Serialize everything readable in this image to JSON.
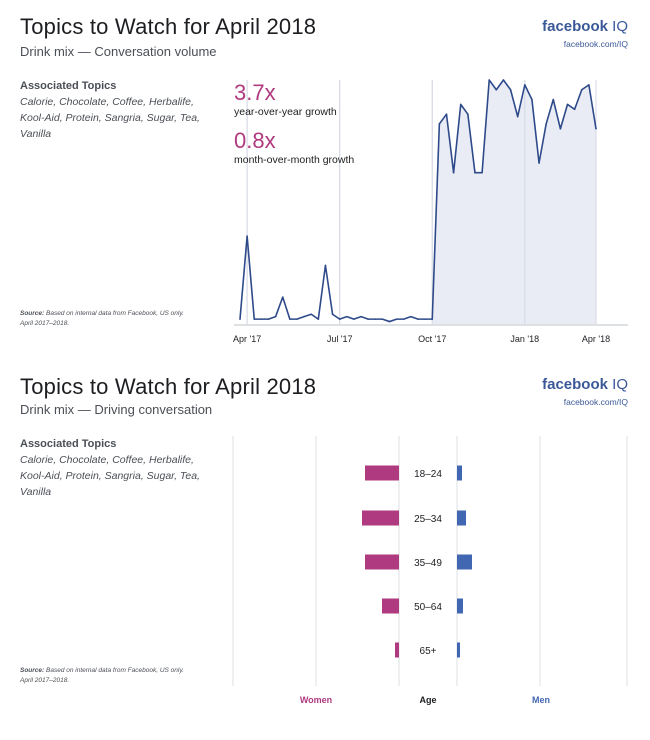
{
  "panel1": {
    "title": "Topics to Watch for April 2018",
    "subtitle": "Drink mix — Conversation volume",
    "brand": "facebook",
    "brand_suffix": "IQ",
    "brand_url": "facebook.com/IQ",
    "assoc_title": "Associated Topics",
    "assoc_list": "Calorie, Chocolate, Coffee, Herbalife, Kool-Aid, Protein, Sangria, Sugar, Tea, Vanilla",
    "source_label": "Source:",
    "source_text": "Based on internal data from Facebook, US only. April 2017–2018.",
    "metric1_value": "3.7x",
    "metric1_label": "year-over-year growth",
    "metric2_value": "0.8x",
    "metric2_label": "month-over-month growth"
  },
  "panel2": {
    "title": "Topics to Watch for April 2018",
    "subtitle": "Drink mix — Driving conversation",
    "brand": "facebook",
    "brand_suffix": "IQ",
    "brand_url": "facebook.com/IQ",
    "assoc_title": "Associated Topics",
    "assoc_list": "Calorie, Chocolate, Coffee, Herbalife, Kool-Aid, Protein, Sangria, Sugar, Tea, Vanilla",
    "source_label": "Source:",
    "source_text": "Based on internal data from Facebook, US only. April 2017–2018."
  },
  "colors": {
    "women": "#b03a7f",
    "men": "#4267b2",
    "line": "#2e4a8a",
    "area": "#e9ecf5",
    "grid": "#dddfe2"
  },
  "chart_data": [
    {
      "type": "area",
      "x_ticks": [
        "Apr '17",
        "Jul '17",
        "Oct '17",
        "Jan '18",
        "Apr '18"
      ],
      "ylim": [
        0,
        100
      ],
      "series": [
        {
          "values": [
            2,
            36,
            2,
            2,
            2,
            3,
            11,
            2,
            2,
            3,
            4,
            2,
            24,
            4,
            2,
            3,
            2,
            3,
            2,
            2,
            2,
            1,
            2,
            2,
            3,
            2,
            2,
            2,
            82,
            86,
            62,
            90,
            86,
            62,
            62,
            100,
            96,
            100,
            96,
            85,
            98,
            92,
            66,
            82,
            92,
            80,
            90,
            88,
            96,
            98,
            80
          ]
        }
      ],
      "shaded_from_index": 27,
      "xlabel": "",
      "ylabel": ""
    },
    {
      "type": "bar",
      "orientation": "horizontal-diverging",
      "categories": [
        "18–24",
        "25–34",
        "35–49",
        "50–64",
        "65+"
      ],
      "series": [
        {
          "name": "Women",
          "values": [
            34,
            37,
            34,
            17,
            4
          ]
        },
        {
          "name": "Men",
          "values": [
            5,
            9,
            15,
            6,
            3
          ]
        }
      ],
      "center_label": "Age",
      "xlabel": "",
      "ylabel": ""
    }
  ]
}
